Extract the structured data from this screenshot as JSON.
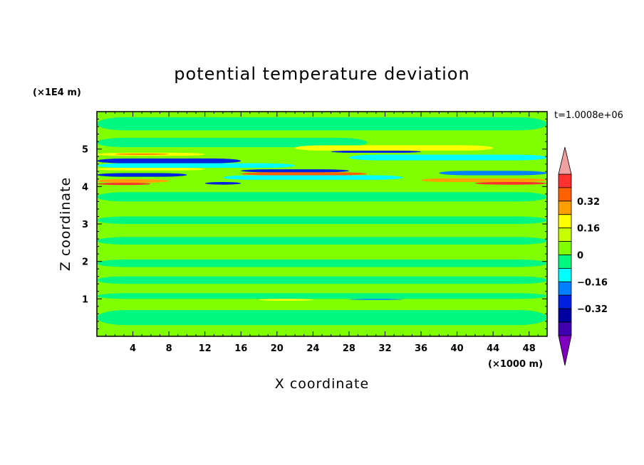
{
  "chart_data": {
    "type": "heatmap",
    "title": "potential temperature deviation",
    "xlabel": "X coordinate",
    "ylabel": "Z coordinate",
    "x_unit": "(×1000 m)",
    "y_unit": "(×1E4 m)",
    "time_label": "t=1.0008e+06",
    "xlim": [
      0,
      50
    ],
    "ylim": [
      0,
      6
    ],
    "x_ticks": [
      "4",
      "8",
      "12",
      "16",
      "20",
      "24",
      "28",
      "32",
      "36",
      "40",
      "44",
      "48"
    ],
    "y_ticks": [
      "1",
      "2",
      "3",
      "4",
      "5"
    ],
    "colorbar": {
      "range": [
        -0.48,
        0.48
      ],
      "step": 0.08,
      "tick_labels": [
        "0.32",
        "0.16",
        "0",
        "−0.16",
        "−0.32"
      ],
      "tick_values": [
        0.32,
        0.16,
        0,
        -0.16,
        -0.32
      ],
      "levels": [
        {
          "min": 0.4,
          "max": 0.48,
          "color": "#ff3030"
        },
        {
          "min": 0.32,
          "max": 0.4,
          "color": "#ff6000"
        },
        {
          "min": 0.24,
          "max": 0.32,
          "color": "#ffa000"
        },
        {
          "min": 0.16,
          "max": 0.24,
          "color": "#ffff00"
        },
        {
          "min": 0.08,
          "max": 0.16,
          "color": "#c8ff00"
        },
        {
          "min": 0,
          "max": 0.08,
          "color": "#80ff00"
        },
        {
          "min": -0.08,
          "max": 0,
          "color": "#00f880"
        },
        {
          "min": -0.16,
          "max": -0.08,
          "color": "#00ffff"
        },
        {
          "min": -0.24,
          "max": -0.16,
          "color": "#0080ff"
        },
        {
          "min": -0.32,
          "max": -0.24,
          "color": "#0020e0"
        },
        {
          "min": -0.4,
          "max": -0.32,
          "color": "#0000a0"
        },
        {
          "min": -0.48,
          "max": -0.4,
          "color": "#4000b0"
        }
      ],
      "over_color": "#f0a0a0",
      "under_color": "#8000c0"
    },
    "field_approx": {
      "background": "#80ff00",
      "bands": [
        {
          "x": [
            0,
            50
          ],
          "z": [
            5.5,
            5.85
          ],
          "color": "#00f880"
        },
        {
          "x": [
            0,
            30
          ],
          "z": [
            5.05,
            5.3
          ],
          "color": "#00f880"
        },
        {
          "x": [
            0,
            12
          ],
          "z": [
            4.82,
            4.9
          ],
          "color": "#ffff00"
        },
        {
          "x": [
            2,
            8
          ],
          "z": [
            4.85,
            4.88
          ],
          "color": "#ff6000"
        },
        {
          "x": [
            0,
            16
          ],
          "z": [
            4.62,
            4.75
          ],
          "color": "#0020e0"
        },
        {
          "x": [
            0,
            22
          ],
          "z": [
            4.5,
            4.62
          ],
          "color": "#00ffff"
        },
        {
          "x": [
            0,
            12
          ],
          "z": [
            4.43,
            4.5
          ],
          "color": "#ffff00"
        },
        {
          "x": [
            0,
            10
          ],
          "z": [
            4.26,
            4.36
          ],
          "color": "#0020e0"
        },
        {
          "x": [
            0,
            8
          ],
          "z": [
            4.1,
            4.2
          ],
          "color": "#ffa000"
        },
        {
          "x": [
            0,
            6
          ],
          "z": [
            4.04,
            4.1
          ],
          "color": "#ff3030"
        },
        {
          "x": [
            26,
            36
          ],
          "z": [
            4.9,
            4.96
          ],
          "color": "#0020e0"
        },
        {
          "x": [
            22,
            44
          ],
          "z": [
            4.96,
            5.1
          ],
          "color": "#ffff00"
        },
        {
          "x": [
            28,
            50
          ],
          "z": [
            4.7,
            4.85
          ],
          "color": "#00ffff"
        },
        {
          "x": [
            16,
            28
          ],
          "z": [
            4.38,
            4.46
          ],
          "color": "#0020e0"
        },
        {
          "x": [
            16,
            30
          ],
          "z": [
            4.3,
            4.38
          ],
          "color": "#ff6000"
        },
        {
          "x": [
            14,
            34
          ],
          "z": [
            4.18,
            4.3
          ],
          "color": "#00ffff"
        },
        {
          "x": [
            12,
            16
          ],
          "z": [
            4.05,
            4.12
          ],
          "color": "#0020e0"
        },
        {
          "x": [
            38,
            50
          ],
          "z": [
            4.3,
            4.42
          ],
          "color": "#0080ff"
        },
        {
          "x": [
            36,
            50
          ],
          "z": [
            4.12,
            4.22
          ],
          "color": "#ffa000"
        },
        {
          "x": [
            42,
            50
          ],
          "z": [
            4.05,
            4.12
          ],
          "color": "#ff3030"
        },
        {
          "x": [
            0,
            50
          ],
          "z": [
            3.6,
            3.85
          ],
          "color": "#00f880"
        },
        {
          "x": [
            0,
            50
          ],
          "z": [
            3.0,
            3.2
          ],
          "color": "#00f880"
        },
        {
          "x": [
            0,
            50
          ],
          "z": [
            2.45,
            2.65
          ],
          "color": "#00f880"
        },
        {
          "x": [
            0,
            50
          ],
          "z": [
            1.85,
            2.05
          ],
          "color": "#00f880"
        },
        {
          "x": [
            0,
            50
          ],
          "z": [
            1.4,
            1.6
          ],
          "color": "#00f880"
        },
        {
          "x": [
            0,
            50
          ],
          "z": [
            1.0,
            1.15
          ],
          "color": "#00f880"
        },
        {
          "x": [
            18,
            24
          ],
          "z": [
            0.95,
            1.0
          ],
          "color": "#ffff00"
        },
        {
          "x": [
            28,
            34
          ],
          "z": [
            0.97,
            1.0
          ],
          "color": "#0080ff"
        },
        {
          "x": [
            0,
            50
          ],
          "z": [
            0.3,
            0.7
          ],
          "color": "#00f880"
        },
        {
          "x": [
            0,
            50
          ],
          "z": [
            0.0,
            0.15
          ],
          "color": "#80ff00"
        }
      ]
    }
  }
}
